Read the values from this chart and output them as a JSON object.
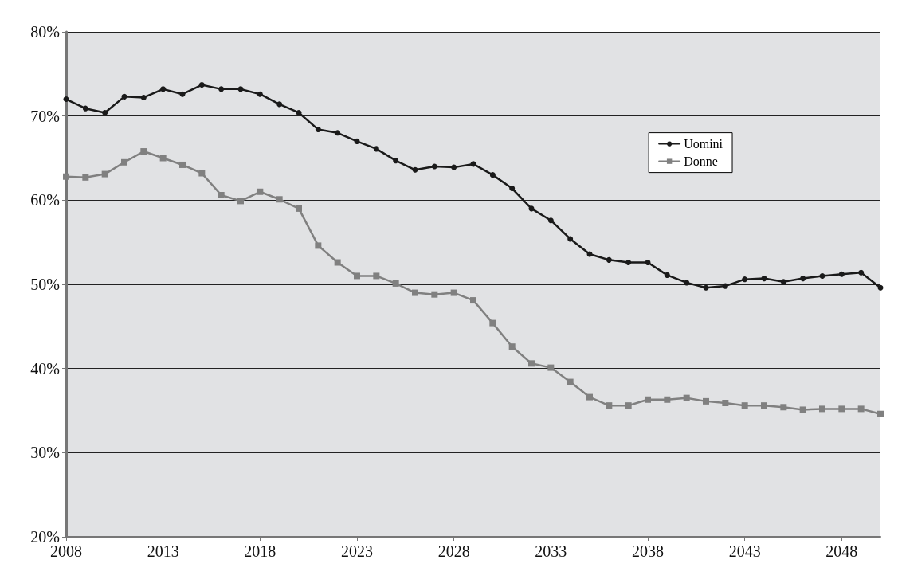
{
  "chart_data": {
    "type": "line",
    "x": [
      2008,
      2009,
      2010,
      2011,
      2012,
      2013,
      2014,
      2015,
      2016,
      2017,
      2018,
      2019,
      2020,
      2021,
      2022,
      2023,
      2024,
      2025,
      2026,
      2027,
      2028,
      2029,
      2030,
      2031,
      2032,
      2033,
      2034,
      2035,
      2036,
      2037,
      2038,
      2039,
      2040,
      2041,
      2042,
      2043,
      2044,
      2045,
      2046,
      2047,
      2048,
      2049,
      2050
    ],
    "series": [
      {
        "name": "Uomini",
        "color": "#1a1a1a",
        "marker": "circle",
        "values": [
          72.0,
          70.9,
          70.4,
          72.3,
          72.2,
          73.2,
          72.6,
          73.7,
          73.2,
          73.2,
          72.6,
          71.4,
          70.4,
          68.4,
          68.0,
          67.0,
          66.1,
          64.7,
          63.6,
          64.0,
          63.9,
          64.3,
          63.0,
          61.4,
          59.0,
          57.6,
          55.4,
          53.6,
          52.9,
          52.6,
          52.6,
          51.1,
          50.2,
          49.6,
          49.8,
          50.6,
          50.7,
          50.3,
          50.7,
          51.0,
          51.2,
          51.4,
          49.6
        ]
      },
      {
        "name": "Donne",
        "color": "#808080",
        "marker": "square",
        "values": [
          62.8,
          62.7,
          63.1,
          64.5,
          65.8,
          65.0,
          64.2,
          63.2,
          60.6,
          59.9,
          61.0,
          60.1,
          59.0,
          54.6,
          52.6,
          51.0,
          51.0,
          50.1,
          49.0,
          48.8,
          49.0,
          48.1,
          45.4,
          42.6,
          40.6,
          40.1,
          38.4,
          36.6,
          35.6,
          35.6,
          36.3,
          36.3,
          36.5,
          36.1,
          35.9,
          35.6,
          35.6,
          35.4,
          35.1,
          35.2,
          35.2,
          35.2,
          34.6
        ]
      }
    ],
    "xlim": [
      2008,
      2050
    ],
    "xticks": [
      2008,
      2013,
      2018,
      2023,
      2028,
      2033,
      2038,
      2043,
      2048
    ],
    "ylim": [
      20,
      80
    ],
    "yticks": [
      {
        "value": 20,
        "label": "20%"
      },
      {
        "value": 30,
        "label": "30%"
      },
      {
        "value": 40,
        "label": "40%"
      },
      {
        "value": 50,
        "label": "50%"
      },
      {
        "value": 60,
        "label": "60%"
      },
      {
        "value": 70,
        "label": "70%"
      },
      {
        "value": 80,
        "label": "80%"
      }
    ],
    "grid": "y",
    "legend": "top right",
    "line_style": "solid"
  }
}
